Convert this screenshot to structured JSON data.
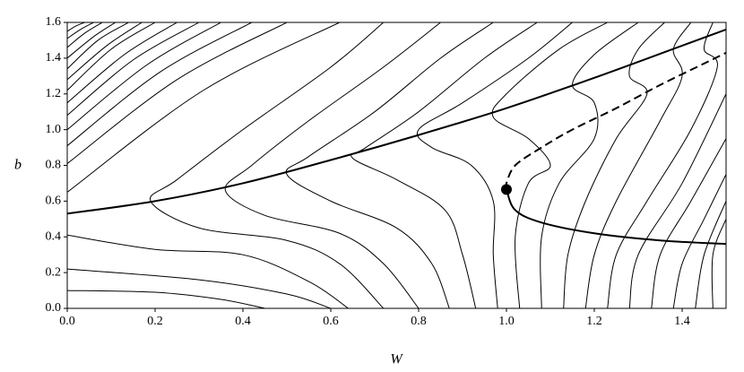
{
  "chart_data": {
    "type": "contour",
    "x_label": "W",
    "y_label": "b",
    "xlim": [
      0,
      1.5
    ],
    "ylim": [
      0,
      1.6
    ],
    "xticks": [
      {
        "value": 0,
        "label": "0.0"
      },
      {
        "value": 0.2,
        "label": "0.2"
      },
      {
        "value": 0.4,
        "label": "0.4"
      },
      {
        "value": 0.6,
        "label": "0.6"
      },
      {
        "value": 0.8,
        "label": "0.8"
      },
      {
        "value": 1,
        "label": "1.0"
      },
      {
        "value": 1.2,
        "label": "1.2"
      },
      {
        "value": 1.4,
        "label": "1.4"
      }
    ],
    "yticks": [
      {
        "value": 0,
        "label": "0.0"
      },
      {
        "value": 0.2,
        "label": "0.2"
      },
      {
        "value": 0.4,
        "label": "0.4"
      },
      {
        "value": 0.6,
        "label": "0.6"
      },
      {
        "value": 0.8,
        "label": "0.8"
      },
      {
        "value": 1,
        "label": "1.0"
      },
      {
        "value": 1.2,
        "label": "1.2"
      },
      {
        "value": 1.4,
        "label": "1.4"
      },
      {
        "value": 1.6,
        "label": "1.6"
      }
    ],
    "color": "#000000",
    "contours": [
      {
        "x": [
          0,
          0.31,
          0.62
        ],
        "values": [
          0.65,
          1.22,
          1.6
        ]
      },
      {
        "x": [
          0,
          0.25,
          0.5
        ],
        "values": [
          0.81,
          1.28,
          1.6
        ]
      },
      {
        "x": [
          0,
          0.21,
          0.42
        ],
        "values": [
          0.91,
          1.32,
          1.6
        ]
      },
      {
        "x": [
          0,
          0.18,
          0.35
        ],
        "values": [
          1.0,
          1.36,
          1.6
        ]
      },
      {
        "x": [
          0,
          0.15,
          0.3
        ],
        "values": [
          1.08,
          1.39,
          1.6
        ]
      },
      {
        "x": [
          0,
          0.13,
          0.25
        ],
        "values": [
          1.15,
          1.42,
          1.6
        ]
      },
      {
        "x": [
          0,
          0.1,
          0.2
        ],
        "values": [
          1.22,
          1.45,
          1.6
        ]
      },
      {
        "x": [
          0,
          0.09,
          0.17
        ],
        "values": [
          1.28,
          1.47,
          1.6
        ]
      },
      {
        "x": [
          0,
          0.07,
          0.14
        ],
        "values": [
          1.34,
          1.5,
          1.6
        ]
      },
      {
        "x": [
          0,
          0.06,
          0.11
        ],
        "values": [
          1.4,
          1.52,
          1.6
        ]
      },
      {
        "x": [
          0,
          0.04,
          0.08
        ],
        "values": [
          1.46,
          1.54,
          1.6
        ]
      },
      {
        "x": [
          0,
          0.03,
          0.06
        ],
        "values": [
          1.51,
          1.56,
          1.6
        ]
      },
      {
        "x": [
          0,
          0.02,
          0.04
        ],
        "values": [
          1.55,
          1.58,
          1.6
        ]
      },
      {
        "x": [
          0,
          0.2,
          0.35,
          0.45
        ],
        "values": [
          0.1,
          0.09,
          0.05,
          0
        ]
      },
      {
        "x": [
          0,
          0.3,
          0.5,
          0.6
        ],
        "values": [
          0.22,
          0.16,
          0.08,
          0
        ]
      },
      {
        "x": [
          0,
          0.2,
          0.4,
          0.55,
          0.64
        ],
        "values": [
          0.41,
          0.33,
          0.3,
          0.15,
          0
        ]
      },
      {
        "x": [
          0.72,
          0.6,
          0.4,
          0.25,
          0.19,
          0.3,
          0.5,
          0.62,
          0.72
        ],
        "values": [
          1.6,
          1.35,
          1.0,
          0.72,
          0.6,
          0.45,
          0.38,
          0.25,
          0
        ]
      },
      {
        "x": [
          0.85,
          0.72,
          0.55,
          0.42,
          0.36,
          0.45,
          0.62,
          0.72,
          0.8
        ],
        "values": [
          1.6,
          1.35,
          1.05,
          0.8,
          0.66,
          0.52,
          0.42,
          0.25,
          0
        ]
      },
      {
        "x": [
          0.97,
          0.85,
          0.7,
          0.55,
          0.5,
          0.6,
          0.75,
          0.83,
          0.87
        ],
        "values": [
          1.6,
          1.4,
          1.1,
          0.85,
          0.75,
          0.6,
          0.45,
          0.25,
          0
        ]
      },
      {
        "x": [
          1.07,
          0.95,
          0.8,
          0.68,
          0.65,
          0.75,
          0.86,
          0.9,
          0.93
        ],
        "values": [
          1.6,
          1.4,
          1.1,
          0.9,
          0.84,
          0.72,
          0.55,
          0.3,
          0
        ]
      },
      {
        "x": [
          1.15,
          1.05,
          0.9,
          0.8,
          0.83,
          0.92,
          0.97,
          0.97,
          0.98
        ],
        "values": [
          1.6,
          1.4,
          1.15,
          1.0,
          0.9,
          0.8,
          0.6,
          0.3,
          0
        ]
      },
      {
        "x": [
          1.23,
          1.12,
          1.0,
          0.97,
          1.05,
          1.1,
          1.05,
          1.02,
          1.03
        ],
        "values": [
          1.6,
          1.45,
          1.2,
          1.07,
          0.95,
          0.8,
          0.7,
          0.4,
          0
        ]
      },
      {
        "x": [
          1.3,
          1.2,
          1.15,
          1.2,
          1.2,
          1.12,
          1.08,
          1.08
        ],
        "values": [
          1.6,
          1.42,
          1.25,
          1.15,
          0.95,
          0.7,
          0.4,
          0
        ]
      },
      {
        "x": [
          1.36,
          1.3,
          1.28,
          1.32,
          1.25,
          1.18,
          1.14,
          1.13
        ],
        "values": [
          1.6,
          1.45,
          1.3,
          1.2,
          0.95,
          0.6,
          0.3,
          0
        ]
      },
      {
        "x": [
          1.42,
          1.38,
          1.4,
          1.35,
          1.25,
          1.2,
          1.18
        ],
        "values": [
          1.6,
          1.45,
          1.3,
          1.05,
          0.6,
          0.3,
          0
        ]
      },
      {
        "x": [
          1.47,
          1.45,
          1.48,
          1.42,
          1.32,
          1.25,
          1.23
        ],
        "values": [
          1.6,
          1.45,
          1.35,
          1.0,
          0.6,
          0.3,
          0
        ]
      },
      {
        "x": [
          1.5,
          1.4,
          1.3,
          1.28
        ],
        "values": [
          1.2,
          0.7,
          0.3,
          0
        ]
      },
      {
        "x": [
          1.5,
          1.42,
          1.35,
          1.33
        ],
        "values": [
          0.95,
          0.6,
          0.3,
          0
        ]
      },
      {
        "x": [
          1.5,
          1.45,
          1.4,
          1.38
        ],
        "values": [
          0.75,
          0.5,
          0.25,
          0
        ]
      },
      {
        "x": [
          1.5,
          1.45,
          1.43
        ],
        "values": [
          0.6,
          0.3,
          0
        ]
      },
      {
        "x": [
          1.5,
          1.47,
          1.47
        ],
        "values": [
          0.5,
          0.3,
          0
        ]
      }
    ],
    "curves": [
      {
        "x": [
          0,
          0.2,
          0.4,
          0.6,
          0.8,
          1.0,
          1.2,
          1.4,
          1.5
        ],
        "values": [
          0.53,
          0.6,
          0.7,
          0.83,
          0.97,
          1.12,
          1.29,
          1.47,
          1.56
        ],
        "dashed": false
      },
      {
        "x": [
          1.0,
          1.0,
          1.02,
          1.08,
          1.15,
          1.25,
          1.35,
          1.45,
          1.5
        ],
        "values": [
          0.665,
          0.7,
          0.8,
          0.9,
          1.0,
          1.12,
          1.25,
          1.37,
          1.43
        ],
        "dashed": true
      },
      {
        "x": [
          1.0,
          1.02,
          1.08,
          1.2,
          1.35,
          1.5
        ],
        "values": [
          0.665,
          0.55,
          0.48,
          0.42,
          0.38,
          0.36
        ],
        "dashed": false
      }
    ],
    "point": {
      "x": 1.0,
      "y": 0.665
    }
  }
}
